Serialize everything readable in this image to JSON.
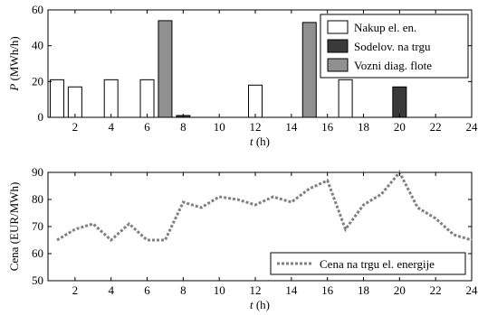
{
  "chart_data": [
    {
      "type": "bar",
      "xlabel_var": "t",
      "xlabel_unit": " (h)",
      "ylabel_var": "P",
      "ylabel_unit": " (MWh/h)",
      "xlim": [
        0.5,
        24
      ],
      "ylim": [
        0,
        60
      ],
      "xticks": [
        2,
        4,
        6,
        8,
        10,
        12,
        14,
        16,
        18,
        20,
        22,
        24
      ],
      "yticks": [
        0,
        20,
        40,
        60
      ],
      "legend_position": "top-right",
      "series": [
        {
          "name": "Nakup el. en.",
          "color": "#ffffff",
          "points": [
            [
              1,
              21
            ],
            [
              2,
              17
            ],
            [
              4,
              21
            ],
            [
              6,
              21
            ],
            [
              12,
              18
            ],
            [
              17,
              21
            ]
          ]
        },
        {
          "name": "Sodelov. na trgu",
          "color": "#3a3a3a",
          "points": [
            [
              8,
              1
            ],
            [
              20,
              17
            ]
          ]
        },
        {
          "name": "Vozni diag. flote",
          "color": "#909090",
          "points": [
            [
              7,
              54
            ],
            [
              15,
              53
            ]
          ]
        }
      ]
    },
    {
      "type": "line",
      "xlabel_var": "t",
      "xlabel_unit": " (h)",
      "ylabel": "Cena (EUR/MWh)",
      "xlim": [
        0.5,
        24
      ],
      "ylim": [
        50,
        90
      ],
      "xticks": [
        2,
        4,
        6,
        8,
        10,
        12,
        14,
        16,
        18,
        20,
        22,
        24
      ],
      "yticks": [
        50,
        60,
        70,
        80,
        90
      ],
      "legend_position": "bottom-right",
      "line_color": "#808080",
      "series": [
        {
          "name": "Cena na trgu el. energije",
          "x": [
            1,
            2,
            3,
            4,
            5,
            6,
            7,
            8,
            9,
            10,
            11,
            12,
            13,
            14,
            15,
            16,
            17,
            18,
            19,
            20,
            21,
            22,
            23,
            24
          ],
          "values": [
            65,
            69,
            71,
            65,
            71,
            65,
            65,
            79,
            77,
            81,
            80,
            78,
            81,
            79,
            84,
            87,
            69,
            78,
            82,
            90,
            77,
            73,
            67,
            65
          ]
        }
      ]
    }
  ]
}
